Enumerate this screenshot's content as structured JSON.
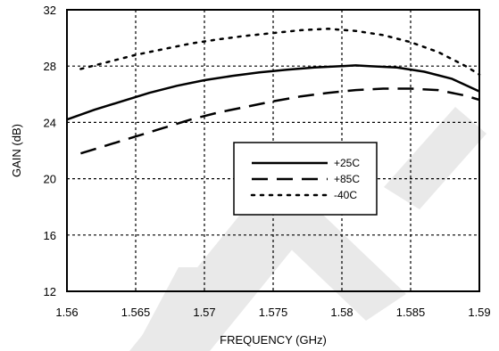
{
  "chart_data": {
    "type": "line",
    "title": "",
    "xlabel": "FREQUENCY (GHz)",
    "ylabel": "GAIN (dB)",
    "xlim": [
      1.56,
      1.59
    ],
    "ylim": [
      12,
      32
    ],
    "xticks": [
      1.56,
      1.565,
      1.57,
      1.575,
      1.58,
      1.585,
      1.59
    ],
    "xtick_labels": [
      "1.56",
      "1.565",
      "1.57",
      "1.575",
      "1.58",
      "1.585",
      "1.59"
    ],
    "yticks": [
      12,
      16,
      20,
      24,
      28,
      32
    ],
    "ytick_labels": [
      "12",
      "16",
      "20",
      "24",
      "28",
      "32"
    ],
    "grid": true,
    "legend_position": "center-right",
    "series": [
      {
        "name": "+25C",
        "style": "solid",
        "color": "#000000",
        "x": [
          1.56,
          1.562,
          1.564,
          1.566,
          1.568,
          1.57,
          1.572,
          1.574,
          1.576,
          1.578,
          1.58,
          1.581,
          1.582,
          1.584,
          1.586,
          1.588,
          1.59
        ],
        "y": [
          24.2,
          24.9,
          25.5,
          26.1,
          26.6,
          27.0,
          27.3,
          27.55,
          27.75,
          27.9,
          28.0,
          28.05,
          28.0,
          27.9,
          27.6,
          27.1,
          26.2
        ]
      },
      {
        "name": "+85C",
        "style": "dashed",
        "color": "#000000",
        "x": [
          1.561,
          1.563,
          1.565,
          1.567,
          1.569,
          1.571,
          1.573,
          1.575,
          1.577,
          1.579,
          1.581,
          1.583,
          1.585,
          1.587,
          1.589,
          1.59
        ],
        "y": [
          21.8,
          22.4,
          23.0,
          23.6,
          24.2,
          24.7,
          25.1,
          25.5,
          25.85,
          26.1,
          26.3,
          26.4,
          26.4,
          26.3,
          25.9,
          25.6
        ]
      },
      {
        "name": "-40C",
        "style": "dotted",
        "color": "#000000",
        "x": [
          1.561,
          1.563,
          1.565,
          1.567,
          1.569,
          1.571,
          1.573,
          1.575,
          1.577,
          1.579,
          1.581,
          1.583,
          1.585,
          1.587,
          1.589,
          1.59
        ],
        "y": [
          27.8,
          28.3,
          28.8,
          29.2,
          29.6,
          29.9,
          30.15,
          30.35,
          30.55,
          30.65,
          30.5,
          30.2,
          29.7,
          29.0,
          28.0,
          27.4
        ]
      }
    ]
  }
}
